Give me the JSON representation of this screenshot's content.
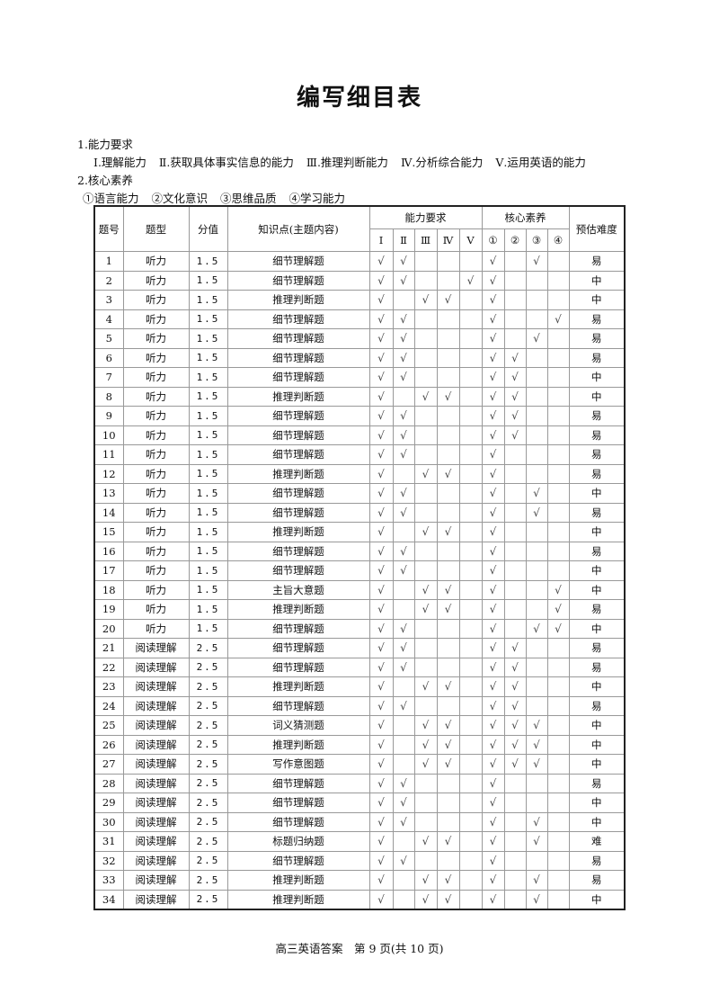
{
  "title": "编写细目表",
  "section1": {
    "heading": "1.能力要求",
    "items": [
      "Ⅰ.理解能力",
      "Ⅱ.获取具体事实信息的能力",
      "Ⅲ.推理判断能力",
      "Ⅳ.分析综合能力",
      "Ⅴ.运用英语的能力"
    ]
  },
  "section2": {
    "heading": "2.核心素养",
    "items": [
      "①语言能力",
      "②文化意识",
      "③思维品质",
      "④学习能力"
    ]
  },
  "table": {
    "headers": {
      "no": "题号",
      "type": "题型",
      "score": "分值",
      "topic": "知识点(主题内容)",
      "ability": "能力要求",
      "literacy": "核心素养",
      "difficulty": "预估难度",
      "ability_cols": [
        "Ⅰ",
        "Ⅱ",
        "Ⅲ",
        "Ⅳ",
        "Ⅴ"
      ],
      "literacy_cols": [
        "①",
        "②",
        "③",
        "④"
      ]
    },
    "rows": [
      {
        "no": "1",
        "type": "听力",
        "score": "1.5",
        "topic": "细节理解题",
        "checks": [
          "√",
          "√",
          "",
          "",
          "",
          "√",
          "",
          "√",
          ""
        ],
        "difficulty": "易"
      },
      {
        "no": "2",
        "type": "听力",
        "score": "1.5",
        "topic": "细节理解题",
        "checks": [
          "√",
          "√",
          "",
          "",
          "√",
          "√",
          "",
          "",
          ""
        ],
        "difficulty": "中"
      },
      {
        "no": "3",
        "type": "听力",
        "score": "1.5",
        "topic": "推理判断题",
        "checks": [
          "√",
          "",
          "√",
          "√",
          "",
          "√",
          "",
          "",
          ""
        ],
        "difficulty": "中"
      },
      {
        "no": "4",
        "type": "听力",
        "score": "1.5",
        "topic": "细节理解题",
        "checks": [
          "√",
          "√",
          "",
          "",
          "",
          "√",
          "",
          "",
          "√"
        ],
        "difficulty": "易"
      },
      {
        "no": "5",
        "type": "听力",
        "score": "1.5",
        "topic": "细节理解题",
        "checks": [
          "√",
          "√",
          "",
          "",
          "",
          "√",
          "",
          "√",
          ""
        ],
        "difficulty": "易"
      },
      {
        "no": "6",
        "type": "听力",
        "score": "1.5",
        "topic": "细节理解题",
        "checks": [
          "√",
          "√",
          "",
          "",
          "",
          "√",
          "√",
          "",
          ""
        ],
        "difficulty": "易"
      },
      {
        "no": "7",
        "type": "听力",
        "score": "1.5",
        "topic": "细节理解题",
        "checks": [
          "√",
          "√",
          "",
          "",
          "",
          "√",
          "√",
          "",
          ""
        ],
        "difficulty": "中"
      },
      {
        "no": "8",
        "type": "听力",
        "score": "1.5",
        "topic": "推理判断题",
        "checks": [
          "√",
          "",
          "√",
          "√",
          "",
          "√",
          "√",
          "",
          ""
        ],
        "difficulty": "中"
      },
      {
        "no": "9",
        "type": "听力",
        "score": "1.5",
        "topic": "细节理解题",
        "checks": [
          "√",
          "√",
          "",
          "",
          "",
          "√",
          "√",
          "",
          ""
        ],
        "difficulty": "易"
      },
      {
        "no": "10",
        "type": "听力",
        "score": "1.5",
        "topic": "细节理解题",
        "checks": [
          "√",
          "√",
          "",
          "",
          "",
          "√",
          "√",
          "",
          ""
        ],
        "difficulty": "易"
      },
      {
        "no": "11",
        "type": "听力",
        "score": "1.5",
        "topic": "细节理解题",
        "checks": [
          "√",
          "√",
          "",
          "",
          "",
          "√",
          "",
          "",
          ""
        ],
        "difficulty": "易"
      },
      {
        "no": "12",
        "type": "听力",
        "score": "1.5",
        "topic": "推理判断题",
        "checks": [
          "√",
          "",
          "√",
          "√",
          "",
          "√",
          "",
          "",
          ""
        ],
        "difficulty": "易"
      },
      {
        "no": "13",
        "type": "听力",
        "score": "1.5",
        "topic": "细节理解题",
        "checks": [
          "√",
          "√",
          "",
          "",
          "",
          "√",
          "",
          "√",
          ""
        ],
        "difficulty": "中"
      },
      {
        "no": "14",
        "type": "听力",
        "score": "1.5",
        "topic": "细节理解题",
        "checks": [
          "√",
          "√",
          "",
          "",
          "",
          "√",
          "",
          "√",
          ""
        ],
        "difficulty": "易"
      },
      {
        "no": "15",
        "type": "听力",
        "score": "1.5",
        "topic": "推理判断题",
        "checks": [
          "√",
          "",
          "√",
          "√",
          "",
          "√",
          "",
          "",
          ""
        ],
        "difficulty": "中"
      },
      {
        "no": "16",
        "type": "听力",
        "score": "1.5",
        "topic": "细节理解题",
        "checks": [
          "√",
          "√",
          "",
          "",
          "",
          "√",
          "",
          "",
          ""
        ],
        "difficulty": "易"
      },
      {
        "no": "17",
        "type": "听力",
        "score": "1.5",
        "topic": "细节理解题",
        "checks": [
          "√",
          "√",
          "",
          "",
          "",
          "√",
          "",
          "",
          ""
        ],
        "difficulty": "中"
      },
      {
        "no": "18",
        "type": "听力",
        "score": "1.5",
        "topic": "主旨大意题",
        "checks": [
          "√",
          "",
          "√",
          "√",
          "",
          "√",
          "",
          "",
          "√"
        ],
        "difficulty": "中"
      },
      {
        "no": "19",
        "type": "听力",
        "score": "1.5",
        "topic": "推理判断题",
        "checks": [
          "√",
          "",
          "√",
          "√",
          "",
          "√",
          "",
          "",
          "√"
        ],
        "difficulty": "易"
      },
      {
        "no": "20",
        "type": "听力",
        "score": "1.5",
        "topic": "细节理解题",
        "checks": [
          "√",
          "√",
          "",
          "",
          "",
          "√",
          "",
          "√",
          "√"
        ],
        "difficulty": "中"
      },
      {
        "no": "21",
        "type": "阅读理解",
        "score": "2.5",
        "topic": "细节理解题",
        "checks": [
          "√",
          "√",
          "",
          "",
          "",
          "√",
          "√",
          "",
          ""
        ],
        "difficulty": "易"
      },
      {
        "no": "22",
        "type": "阅读理解",
        "score": "2.5",
        "topic": "细节理解题",
        "checks": [
          "√",
          "√",
          "",
          "",
          "",
          "√",
          "√",
          "",
          ""
        ],
        "difficulty": "易"
      },
      {
        "no": "23",
        "type": "阅读理解",
        "score": "2.5",
        "topic": "推理判断题",
        "checks": [
          "√",
          "",
          "√",
          "√",
          "",
          "√",
          "√",
          "",
          ""
        ],
        "difficulty": "中"
      },
      {
        "no": "24",
        "type": "阅读理解",
        "score": "2.5",
        "topic": "细节理解题",
        "checks": [
          "√",
          "√",
          "",
          "",
          "",
          "√",
          "√",
          "",
          ""
        ],
        "difficulty": "易"
      },
      {
        "no": "25",
        "type": "阅读理解",
        "score": "2.5",
        "topic": "词义猜测题",
        "checks": [
          "√",
          "",
          "√",
          "√",
          "",
          "√",
          "√",
          "√",
          ""
        ],
        "difficulty": "中"
      },
      {
        "no": "26",
        "type": "阅读理解",
        "score": "2.5",
        "topic": "推理判断题",
        "checks": [
          "√",
          "",
          "√",
          "√",
          "",
          "√",
          "√",
          "√",
          ""
        ],
        "difficulty": "中"
      },
      {
        "no": "27",
        "type": "阅读理解",
        "score": "2.5",
        "topic": "写作意图题",
        "checks": [
          "√",
          "",
          "√",
          "√",
          "",
          "√",
          "√",
          "√",
          ""
        ],
        "difficulty": "中"
      },
      {
        "no": "28",
        "type": "阅读理解",
        "score": "2.5",
        "topic": "细节理解题",
        "checks": [
          "√",
          "√",
          "",
          "",
          "",
          "√",
          "",
          "",
          ""
        ],
        "difficulty": "易"
      },
      {
        "no": "29",
        "type": "阅读理解",
        "score": "2.5",
        "topic": "细节理解题",
        "checks": [
          "√",
          "√",
          "",
          "",
          "",
          "√",
          "",
          "",
          ""
        ],
        "difficulty": "中"
      },
      {
        "no": "30",
        "type": "阅读理解",
        "score": "2.5",
        "topic": "细节理解题",
        "checks": [
          "√",
          "√",
          "",
          "",
          "",
          "√",
          "",
          "√",
          ""
        ],
        "difficulty": "中"
      },
      {
        "no": "31",
        "type": "阅读理解",
        "score": "2.5",
        "topic": "标题归纳题",
        "checks": [
          "√",
          "",
          "√",
          "√",
          "",
          "√",
          "",
          "√",
          ""
        ],
        "difficulty": "难"
      },
      {
        "no": "32",
        "type": "阅读理解",
        "score": "2.5",
        "topic": "细节理解题",
        "checks": [
          "√",
          "√",
          "",
          "",
          "",
          "√",
          "",
          "",
          ""
        ],
        "difficulty": "易"
      },
      {
        "no": "33",
        "type": "阅读理解",
        "score": "2.5",
        "topic": "推理判断题",
        "checks": [
          "√",
          "",
          "√",
          "√",
          "",
          "√",
          "",
          "√",
          ""
        ],
        "difficulty": "易"
      },
      {
        "no": "34",
        "type": "阅读理解",
        "score": "2.5",
        "topic": "推理判断题",
        "checks": [
          "√",
          "",
          "√",
          "√",
          "",
          "√",
          "",
          "√",
          ""
        ],
        "difficulty": "中"
      }
    ]
  },
  "footer": "高三英语答案　第 9 页(共 10 页)"
}
